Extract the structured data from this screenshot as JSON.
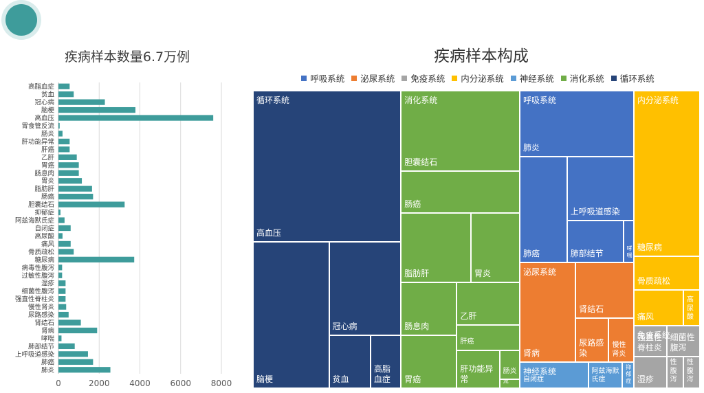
{
  "left_title": "疾病样本数量6.7万例",
  "right_title": "疾病样本构成",
  "legend": [
    {
      "name": "呼吸系统",
      "color": "#4472c4"
    },
    {
      "name": "泌尿系统",
      "color": "#ed7d31"
    },
    {
      "name": "免疫系统",
      "color": "#a5a5a5"
    },
    {
      "name": "内分泌系统",
      "color": "#ffc000"
    },
    {
      "name": "神经系统",
      "color": "#5b9bd5"
    },
    {
      "name": "消化系统",
      "color": "#70ad47"
    },
    {
      "name": "循环系统",
      "color": "#264478"
    }
  ],
  "chart_data": [
    {
      "type": "bar",
      "orientation": "horizontal",
      "title": "疾病样本数量6.7万例",
      "bar_color": "#3e9c9b",
      "xlim": [
        0,
        8000
      ],
      "xticks": [
        0,
        2000,
        4000,
        6000,
        8000
      ],
      "grid": true,
      "categories": [
        "高脂血症",
        "贫血",
        "冠心病",
        "脑梗",
        "高血压",
        "胃食管反流",
        "肠炎",
        "肝功能异常",
        "肝癌",
        "乙肝",
        "胃癌",
        "肠息肉",
        "胃炎",
        "脂肪肝",
        "肠癌",
        "胆囊结石",
        "抑郁症",
        "阿兹海默氏症",
        "自闭症",
        "高尿酸",
        "痛风",
        "骨质疏松",
        "糖尿病",
        "病毒性腹泻",
        "过敏性腹泻",
        "湿疹",
        "细菌性腹泻",
        "强直性脊柱炎",
        "慢性肾炎",
        "尿路感染",
        "肾结石",
        "肾病",
        "哮喘",
        "肺部结节",
        "上呼吸道感染",
        "肺癌",
        "肺炎"
      ],
      "values": [
        550,
        750,
        2280,
        3780,
        7600,
        60,
        200,
        550,
        550,
        900,
        1000,
        1000,
        1150,
        1650,
        1700,
        3250,
        100,
        300,
        600,
        200,
        600,
        750,
        3720,
        180,
        180,
        350,
        350,
        350,
        380,
        500,
        1100,
        1900,
        150,
        800,
        1450,
        1700,
        2550
      ]
    },
    {
      "type": "treemap",
      "title": "疾病样本构成",
      "groups": [
        {
          "name": "循环系统",
          "color": "#264478",
          "children": [
            {
              "name": "高血压",
              "value": 7600
            },
            {
              "name": "脑梗",
              "value": 3780
            },
            {
              "name": "冠心病",
              "value": 2280
            },
            {
              "name": "贫血",
              "value": 750
            },
            {
              "name": "高脂血症",
              "value": 550
            }
          ]
        },
        {
          "name": "消化系统",
          "color": "#70ad47",
          "children": [
            {
              "name": "胆囊结石",
              "value": 3250
            },
            {
              "name": "肠癌",
              "value": 1700
            },
            {
              "name": "脂肪肝",
              "value": 1650
            },
            {
              "name": "胃炎",
              "value": 1150
            },
            {
              "name": "肠息肉",
              "value": 1000
            },
            {
              "name": "胃癌",
              "value": 1000
            },
            {
              "name": "乙肝",
              "value": 900
            },
            {
              "name": "肝癌",
              "value": 550
            },
            {
              "name": "肝功能异常",
              "value": 550
            },
            {
              "name": "肠炎",
              "value": 200
            },
            {
              "name": "胃食管反流",
              "value": 60
            }
          ]
        },
        {
          "name": "呼吸系统",
          "color": "#4472c4",
          "children": [
            {
              "name": "肺炎",
              "value": 2550
            },
            {
              "name": "肺癌",
              "value": 1700
            },
            {
              "name": "上呼吸道感染",
              "value": 1450
            },
            {
              "name": "肺部结节",
              "value": 800
            },
            {
              "name": "哮喘",
              "value": 150
            }
          ]
        },
        {
          "name": "内分泌系统",
          "color": "#ffc000",
          "children": [
            {
              "name": "糖尿病",
              "value": 3720
            },
            {
              "name": "骨质疏松",
              "value": 750
            },
            {
              "name": "痛风",
              "value": 600
            },
            {
              "name": "高尿酸",
              "value": 200
            }
          ]
        },
        {
          "name": "泌尿系统",
          "color": "#ed7d31",
          "children": [
            {
              "name": "肾病",
              "value": 1900
            },
            {
              "name": "肾结石",
              "value": 1100
            },
            {
              "name": "尿路感染",
              "value": 500
            },
            {
              "name": "慢性肾炎",
              "value": 380
            }
          ]
        },
        {
          "name": "免疫系统",
          "color": "#a5a5a5",
          "children": [
            {
              "name": "强直性脊柱炎",
              "value": 350
            },
            {
              "name": "湿疹",
              "value": 350
            },
            {
              "name": "细菌性腹泻",
              "value": 350
            },
            {
              "name": "过敏性腹泻",
              "value": 180
            },
            {
              "name": "病毒性腹泻",
              "value": 180
            }
          ]
        },
        {
          "name": "神经系统",
          "color": "#5b9bd5",
          "children": [
            {
              "name": "自闭症",
              "value": 600
            },
            {
              "name": "阿兹海默氏症",
              "value": 300
            },
            {
              "name": "抑郁症",
              "value": 100
            }
          ]
        }
      ]
    }
  ]
}
